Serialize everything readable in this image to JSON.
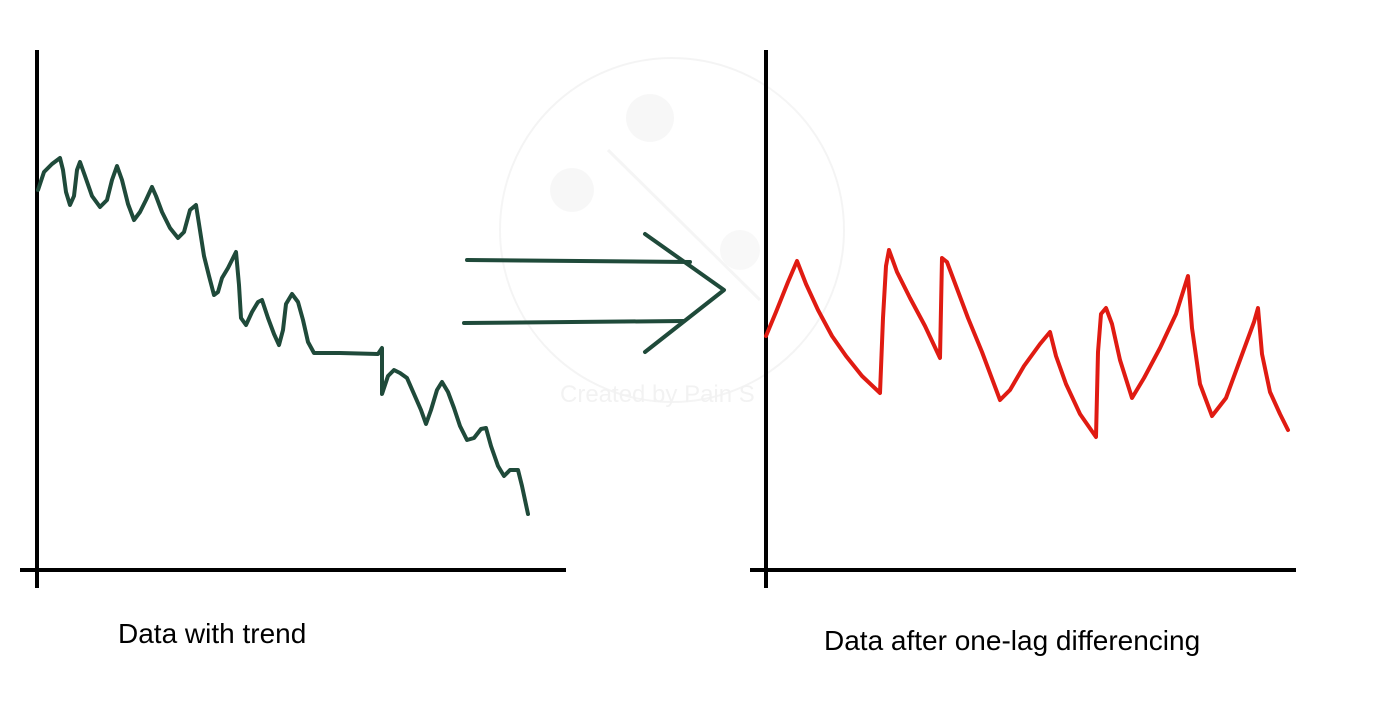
{
  "colors": {
    "axis": "#000000",
    "trend_series": "#1f4a3a",
    "differenced_series": "#e01b12",
    "arrow": "#1f4a3a",
    "watermark": "#e9e9e9"
  },
  "watermark": {
    "text": "Created by Pain S"
  },
  "panels": {
    "left": {
      "caption": "Data with trend"
    },
    "right": {
      "caption": "Data after one-lag differencing"
    }
  },
  "arrow": {
    "icon": "double-arrow-right-icon"
  }
}
